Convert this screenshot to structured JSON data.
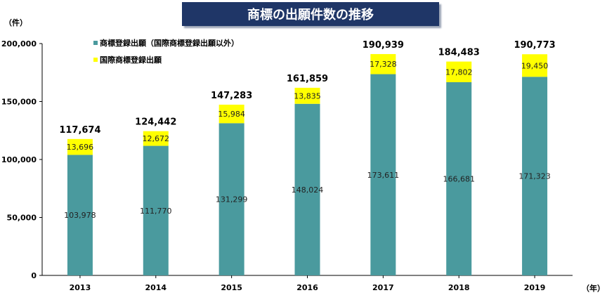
{
  "chart_data": {
    "type": "bar",
    "stacked": true,
    "title": "商標の出願件数の推移",
    "y_unit_label": "（件）",
    "x_unit_label": "（年）",
    "categories": [
      "2013",
      "2014",
      "2015",
      "2016",
      "2017",
      "2018",
      "2019"
    ],
    "series": [
      {
        "name": "商標登録出願（国際商標登録出願以外）",
        "color": "#4a9a9e",
        "values": [
          103978,
          111770,
          131299,
          148024,
          173611,
          166681,
          171323
        ],
        "labels": [
          "103,978",
          "111,770",
          "131,299",
          "148,024",
          "173,611",
          "166,681",
          "171,323"
        ]
      },
      {
        "name": "国際商標登録出願",
        "color": "#ffff00",
        "values": [
          13696,
          12672,
          15984,
          13835,
          17328,
          17802,
          19450
        ],
        "labels": [
          "13,696",
          "12,672",
          "15,984",
          "13,835",
          "17,328",
          "17,802",
          "19,450"
        ]
      }
    ],
    "totals": [
      "117,674",
      "124,442",
      "147,283",
      "161,859",
      "190,939",
      "184,483",
      "190,773"
    ],
    "ylim": [
      0,
      200000
    ],
    "yticks": [
      0,
      50000,
      100000,
      150000,
      200000
    ],
    "ytick_labels": [
      "0",
      "50,000",
      "100,000",
      "150,000",
      "200,000"
    ],
    "grid": false,
    "legend_position": "top-left"
  }
}
